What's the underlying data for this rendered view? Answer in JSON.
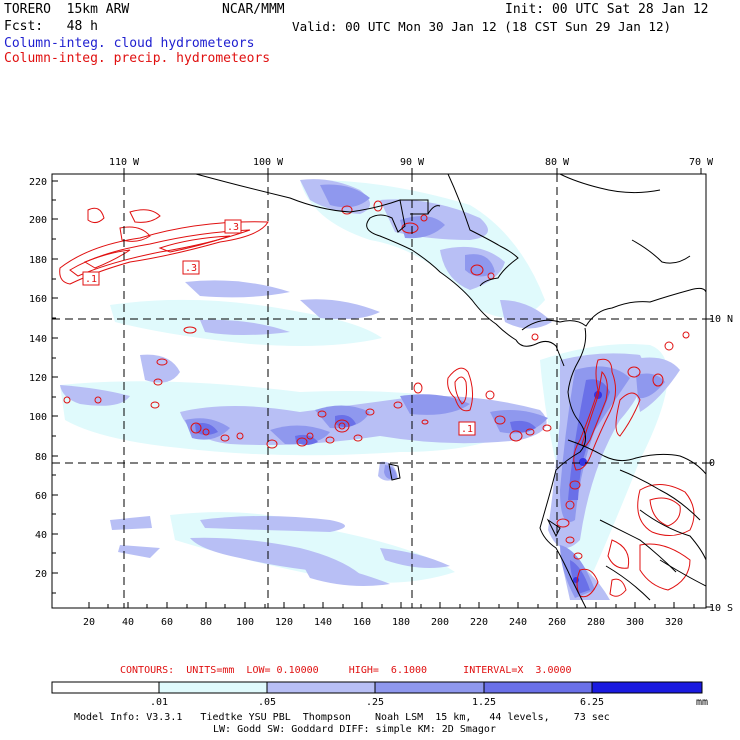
{
  "header": {
    "model": "TORERO  15km ARW",
    "org": "NCAR/MMM",
    "init": "Init: 00 UTC Sat 28 Jan 12",
    "fcst": "Fcst:   48 h",
    "valid": "Valid: 00 UTC Mon 30 Jan 12 (18 CST Sun 29 Jan 12)",
    "field1": "Column-integ. cloud hydrometeors",
    "field2": "Column-integ. precip. hydrometeors"
  },
  "colors": {
    "field1": "#2020d0",
    "field2": "#e01010",
    "coast": "#000000",
    "cloud_1": "#e0fafc",
    "cloud_2": "#b8bff5",
    "cloud_3": "#8f98ee",
    "cloud_4": "#6a70e8",
    "cloud_5": "#4040e0",
    "cloud_6": "#1a1adf"
  },
  "axes": {
    "top_lon_labels": [
      "110 W",
      "100 W",
      "90 W",
      "80 W",
      "70 W"
    ],
    "right_lat_labels": [
      "10 N",
      "0",
      "10 S"
    ],
    "y_ticks": [
      "220",
      "200",
      "180",
      "160",
      "140",
      "120",
      "100",
      "80",
      "60",
      "40",
      "20"
    ],
    "x_ticks": [
      "20",
      "40",
      "60",
      "80",
      "100",
      "120",
      "140",
      "160",
      "180",
      "200",
      "220",
      "240",
      "260",
      "280",
      "300",
      "320"
    ]
  },
  "contour_labels": [
    ".3",
    ".1",
    ".3",
    ".1"
  ],
  "contours_info": {
    "text": "CONTOURS:  UNITS=mm  LOW= 0.10000     HIGH=  6.1000      INTERVAL=X  3.0000"
  },
  "legend": {
    "levels": [
      ".01",
      ".05",
      ".25",
      "1.25",
      "6.25"
    ],
    "units": "mm"
  },
  "model_info": {
    "line1": "Model Info: V3.3.1   Tiedtke YSU PBL  Thompson    Noah LSM  15 km,   44 levels,    73 sec",
    "line2": "LW: Godd SW: Goddard DIFF: simple KM: 2D Smagor"
  }
}
